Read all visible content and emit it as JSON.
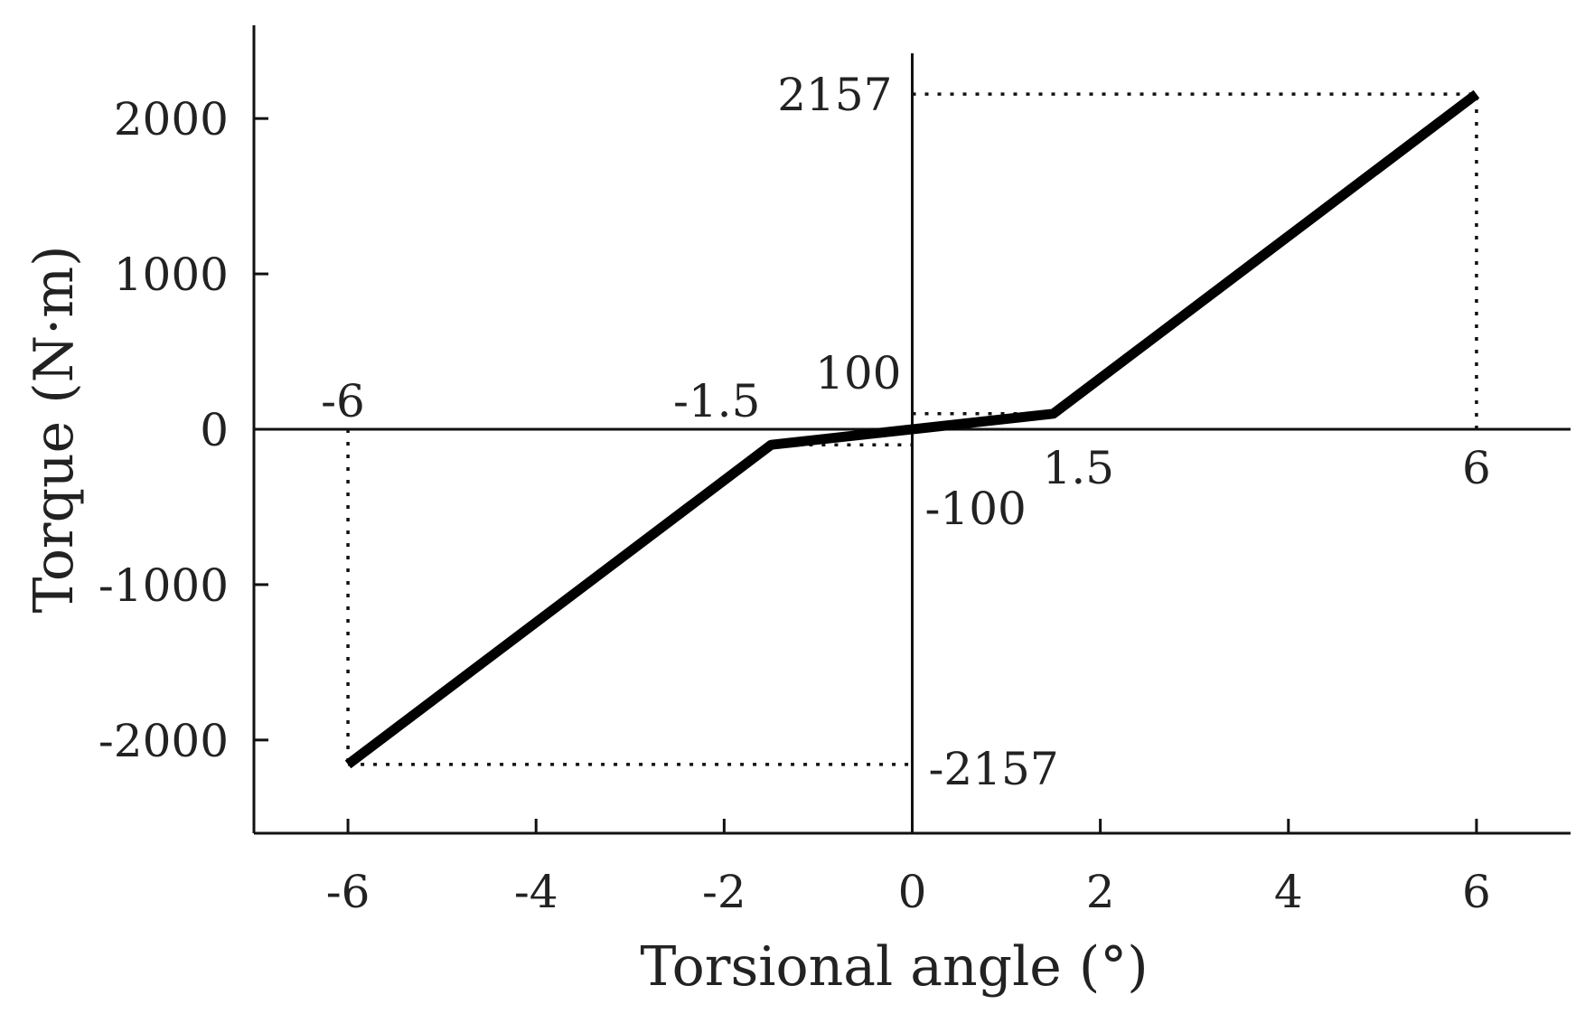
{
  "chart_data": {
    "type": "line",
    "xlabel": "Torsional angle (°)",
    "ylabel": "Torque (N·m)",
    "xlim": [
      -7,
      7
    ],
    "ylim": [
      -2600,
      2600
    ],
    "xticks": [
      -6,
      -4,
      -2,
      0,
      2,
      4,
      6
    ],
    "yticks": [
      -2000,
      -1000,
      0,
      1000,
      2000
    ],
    "grid": false,
    "series": [
      {
        "x": [
          -6,
          -1.5,
          1.5,
          6
        ],
        "y": [
          -2157,
          -100,
          100,
          2157
        ]
      }
    ],
    "reference_lines": [
      {
        "x": [
          6,
          6
        ],
        "y": [
          0,
          2157
        ]
      },
      {
        "x": [
          0,
          6
        ],
        "y": [
          2157,
          2157
        ]
      },
      {
        "x": [
          -6,
          -6
        ],
        "y": [
          0,
          -2157
        ]
      },
      {
        "x": [
          -6,
          0
        ],
        "y": [
          -2157,
          -2157
        ]
      },
      {
        "x": [
          0,
          1.5
        ],
        "y": [
          100,
          100
        ]
      },
      {
        "x": [
          -1.5,
          0
        ],
        "y": [
          -100,
          -100
        ]
      }
    ],
    "annotations": [
      {
        "text": "2157",
        "x": 0,
        "y": 2157,
        "anchor": "end"
      },
      {
        "text": "-2157",
        "x": 0,
        "y": -2157,
        "anchor": "start"
      },
      {
        "text": "100",
        "x": 0,
        "y": 100,
        "anchor": "end"
      },
      {
        "text": "-100",
        "x": 0,
        "y": -100,
        "anchor": "start"
      },
      {
        "text": "-6",
        "x": -6,
        "y": 0,
        "anchor": "start"
      },
      {
        "text": "-1.5",
        "x": -1.5,
        "y": 0,
        "anchor": "end"
      },
      {
        "text": "1.5",
        "x": 1.5,
        "y": 0,
        "anchor": "start"
      },
      {
        "text": "6",
        "x": 6,
        "y": 0,
        "anchor": "middle"
      }
    ]
  }
}
